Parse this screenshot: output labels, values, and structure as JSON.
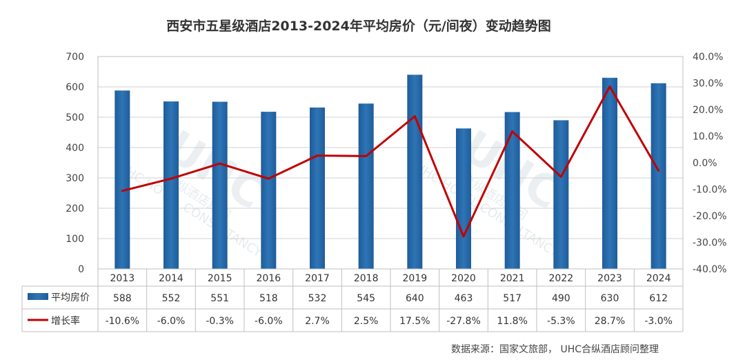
{
  "chart_data": {
    "type": "bar",
    "title": "西安市五星级酒店2013-2024年平均房价（元/间夜）变动趋势图",
    "categories": [
      "2013",
      "2014",
      "2015",
      "2016",
      "2017",
      "2018",
      "2019",
      "2020",
      "2021",
      "2022",
      "2023",
      "2024"
    ],
    "series": [
      {
        "name": "平均房价",
        "type": "bar",
        "axis": "left",
        "color": "#2e75b6",
        "values": [
          588,
          552,
          551,
          518,
          532,
          545,
          640,
          463,
          517,
          490,
          630,
          612
        ],
        "labels": [
          "588",
          "552",
          "551",
          "518",
          "532",
          "545",
          "640",
          "463",
          "517",
          "490",
          "630",
          "612"
        ]
      },
      {
        "name": "增长率",
        "type": "line",
        "axis": "right",
        "color": "#c00000",
        "values": [
          -10.6,
          -6.0,
          -0.3,
          -6.0,
          2.7,
          2.5,
          17.5,
          -27.8,
          11.8,
          -5.3,
          28.7,
          -3.0
        ],
        "labels": [
          "-10.6%",
          "-6.0%",
          "-0.3%",
          "-6.0%",
          "2.7%",
          "2.5%",
          "17.5%",
          "-27.8%",
          "11.8%",
          "-5.3%",
          "28.7%",
          "-3.0%"
        ]
      }
    ],
    "left_axis": {
      "min": 0,
      "max": 700,
      "ticks": [
        "0",
        "100",
        "200",
        "300",
        "400",
        "500",
        "600",
        "700"
      ]
    },
    "right_axis": {
      "min": -40,
      "max": 40,
      "ticks": [
        "-40.0%",
        "-30.0%",
        "-20.0%",
        "-10.0%",
        "0.0%",
        "10.0%",
        "20.0%",
        "30.0%",
        "40.0%"
      ]
    },
    "grid": true,
    "legend": "data-table",
    "source": "数据来源：国家文旅部，  UHC合纵酒店顾问整理",
    "watermark": {
      "logo": "UHC",
      "cn": "合纵酒店顾问",
      "en": "UHC HOTEL CONSULTANCY"
    }
  }
}
